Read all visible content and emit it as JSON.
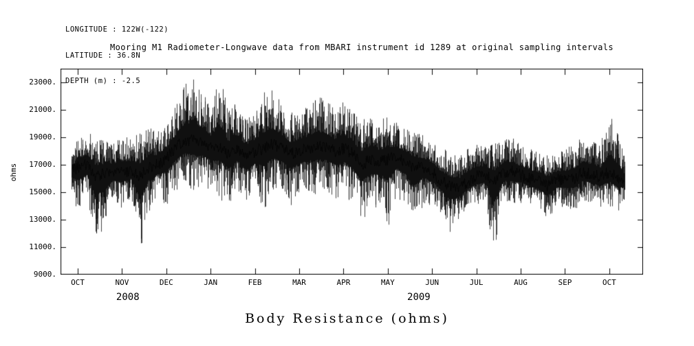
{
  "location": {
    "longitude": "LONGITUDE : 122W(-122)",
    "latitude": "LATITUDE : 36.8N",
    "depth": "DEPTH (m) : -2.5"
  },
  "caption": "Body Resistance (ohms)",
  "chart_data": {
    "type": "line",
    "title": "Mooring M1 Radiometer-Longwave data from MBARI instrument id 1289 at original sampling intervals",
    "xlabel": "",
    "ylabel": "ohms",
    "ylim": [
      9000,
      24000
    ],
    "yticks": [
      9000,
      11000,
      13000,
      15000,
      17000,
      19000,
      21000,
      23000
    ],
    "ytick_labels": [
      "9000.",
      "11000.",
      "13000.",
      "15000.",
      "17000.",
      "19000.",
      "21000.",
      "23000."
    ],
    "x_months": [
      "OCT",
      "NOV",
      "DEC",
      "JAN",
      "FEB",
      "MAR",
      "APR",
      "MAY",
      "JUN",
      "JUL",
      "AUG",
      "SEP",
      "OCT"
    ],
    "year_labels": [
      {
        "text": "2008",
        "month": 1.13
      },
      {
        "text": "2009",
        "month": 7.7
      }
    ],
    "grid": false,
    "legend": false,
    "line_color": "#000000",
    "background": "#ffffff",
    "series": [
      {
        "name": "Body Resistance",
        "units": "ohms",
        "x_month": [
          -0.15,
          0,
          0.2,
          0.4,
          0.6,
          0.8,
          1,
          1.2,
          1.4,
          1.6,
          1.8,
          2,
          2.2,
          2.4,
          2.6,
          2.8,
          3,
          3.2,
          3.4,
          3.6,
          3.8,
          4,
          4.2,
          4.4,
          4.6,
          4.8,
          5,
          5.2,
          5.4,
          5.6,
          5.8,
          6,
          6.2,
          6.4,
          6.6,
          6.8,
          7,
          7.2,
          7.4,
          7.6,
          7.8,
          8,
          8.2,
          8.4,
          8.6,
          8.8,
          9,
          9.2,
          9.4,
          9.6,
          9.8,
          10,
          10.2,
          10.4,
          10.6,
          10.8,
          11,
          11.2,
          11.4,
          11.6,
          11.8,
          12,
          12.2,
          12.35
        ],
        "lo": [
          15000,
          13500,
          14500,
          10700,
          12800,
          14200,
          13800,
          14500,
          10300,
          13500,
          14500,
          14000,
          15000,
          15500,
          15000,
          15500,
          15000,
          14500,
          14000,
          15000,
          14000,
          14800,
          13600,
          15000,
          14800,
          14000,
          14800,
          15000,
          14800,
          15000,
          14500,
          14800,
          14000,
          12800,
          13500,
          14000,
          12400,
          14500,
          14000,
          12200,
          14200,
          14000,
          13500,
          12100,
          13000,
          13800,
          14000,
          14200,
          10400,
          14200,
          14000,
          14200,
          14000,
          13800,
          12800,
          14000,
          13800,
          13600,
          14200,
          14000,
          13800,
          14000,
          13500,
          14500
        ],
        "mid": [
          16500,
          16800,
          17000,
          16200,
          16300,
          16500,
          16500,
          16600,
          16200,
          16800,
          17000,
          17500,
          18200,
          18800,
          18800,
          18600,
          18200,
          18400,
          17800,
          18200,
          17600,
          18000,
          18200,
          18500,
          18200,
          17800,
          18000,
          18200,
          18400,
          18300,
          18000,
          18200,
          17800,
          17000,
          17400,
          17200,
          17400,
          17600,
          17200,
          16800,
          16800,
          16500,
          15800,
          15400,
          15300,
          15800,
          16200,
          16300,
          15800,
          16500,
          16500,
          16300,
          16000,
          15800,
          15500,
          15900,
          15900,
          16000,
          16500,
          16300,
          16100,
          16500,
          16000,
          15800
        ],
        "hi": [
          17600,
          19000,
          19600,
          18800,
          19000,
          18600,
          19200,
          19000,
          19400,
          19800,
          19600,
          20200,
          21500,
          22900,
          23300,
          22500,
          21500,
          23600,
          21000,
          21600,
          20500,
          21000,
          22300,
          22500,
          21500,
          20800,
          21000,
          21300,
          22000,
          21800,
          21000,
          21800,
          21000,
          20500,
          20800,
          20300,
          20500,
          20200,
          19800,
          19500,
          19200,
          18800,
          18300,
          18000,
          17800,
          18300,
          18600,
          18400,
          18600,
          18800,
          19000,
          18400,
          18200,
          18000,
          17800,
          18000,
          18200,
          18500,
          19200,
          18800,
          18600,
          20800,
          19500,
          17500
        ]
      }
    ]
  }
}
